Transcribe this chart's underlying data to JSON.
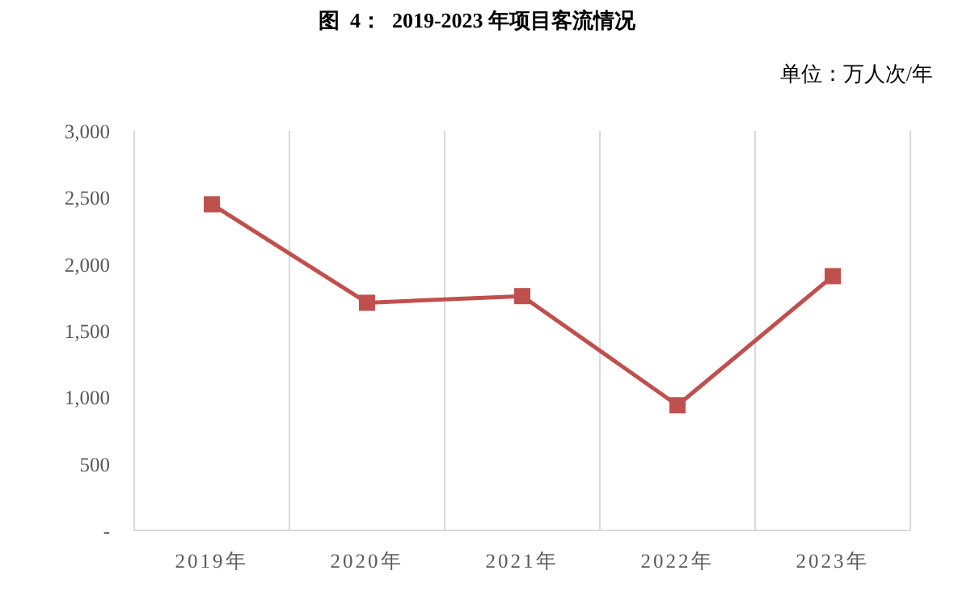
{
  "chart_data": {
    "type": "line",
    "title": "图  4：  2019-2023 年项目客流情况",
    "annotations": [
      "单位：万人次/年"
    ],
    "categories": [
      "2019年",
      "2020年",
      "2021年",
      "2022年",
      "2023年"
    ],
    "series": [
      {
        "color": "#c0504d",
        "values": [
          2450,
          1710,
          1760,
          940,
          1910
        ]
      }
    ],
    "ylim": [
      0,
      3000
    ],
    "yticks": [
      {
        "value": 0,
        "label": "-"
      },
      500,
      {
        "value": 1000,
        "label": "1,000"
      },
      {
        "value": 1500,
        "label": "1,500"
      },
      {
        "value": 2000,
        "label": "2,000"
      },
      {
        "value": 2500,
        "label": "2,500"
      },
      {
        "value": 3000,
        "label": "3,000"
      }
    ],
    "grid": "x",
    "marker": "square"
  }
}
